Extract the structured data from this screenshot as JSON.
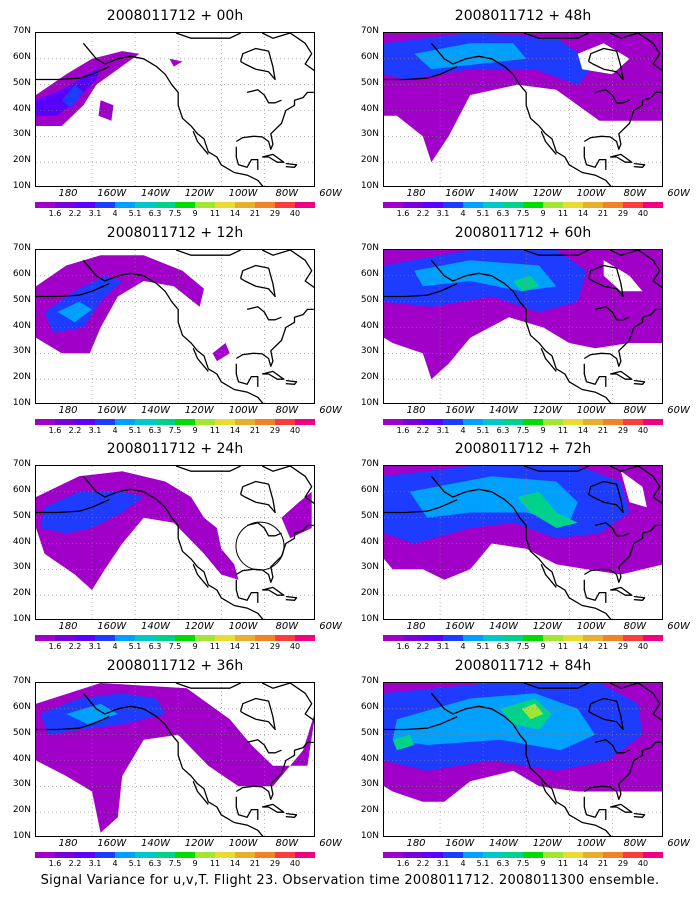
{
  "panels": [
    {
      "title": "2008011712 + 00h",
      "id": "00h"
    },
    {
      "title": "2008011712 + 48h",
      "id": "48h"
    },
    {
      "title": "2008011712 + 12h",
      "id": "12h"
    },
    {
      "title": "2008011712 + 60h",
      "id": "60h"
    },
    {
      "title": "2008011712 + 24h",
      "id": "24h"
    },
    {
      "title": "2008011712 + 72h",
      "id": "72h"
    },
    {
      "title": "2008011712 + 36h",
      "id": "36h"
    },
    {
      "title": "2008011712 + 84h",
      "id": "84h"
    }
  ],
  "y_labels": [
    "70N",
    "60N",
    "50N",
    "40N",
    "30N",
    "20N",
    "10N"
  ],
  "x_labels": [
    "180",
    "160W",
    "140W",
    "120W",
    "100W",
    "80W",
    "60W"
  ],
  "colorbar": {
    "labels": [
      "1.6",
      "2.2",
      "3.1",
      "4",
      "5.1",
      "6.3",
      "7.5",
      "9",
      "11",
      "14",
      "21",
      "29",
      "40"
    ],
    "colors": [
      "#a000c8",
      "#7800dc",
      "#5a00ff",
      "#1e3cff",
      "#00a0ff",
      "#00c8c8",
      "#00d28c",
      "#00dc00",
      "#a0e632",
      "#e6dc32",
      "#e6af2d",
      "#f08228",
      "#fa3c3c",
      "#f00082"
    ]
  },
  "caption": "Signal Variance for u,v,T. Flight 23. Observation time 2008011712. 2008011300 ensemble."
}
